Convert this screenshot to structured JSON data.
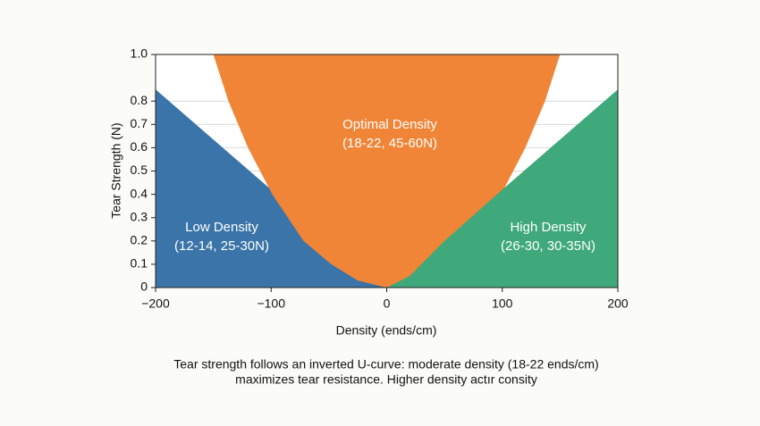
{
  "chart_data": {
    "type": "area",
    "xlabel": "Density (ends/cm)",
    "ylabel": "Tear Strength (N)",
    "xlim": [
      -200,
      200
    ],
    "ylim": [
      0,
      1.0
    ],
    "xticks": [
      {
        "value": -200,
        "label": "−200"
      },
      {
        "value": -100,
        "label": "−100"
      },
      0,
      100,
      200
    ],
    "yticks": [
      0,
      0.1,
      0.2,
      0.3,
      0.4,
      0.5,
      0.6,
      0.7,
      0.8,
      {
        "value": 1.0,
        "label": "1.0"
      }
    ],
    "grid": true,
    "series": [
      {
        "name": "Low Density",
        "note": "(12-14, 25-30N)",
        "color": "#3a74a8",
        "fill_to": "bottom",
        "x": [
          -200,
          -100,
          -50,
          -20,
          0
        ],
        "values": [
          0.85,
          0.42,
          0.2,
          0.05,
          0
        ]
      },
      {
        "name": "Optimal Density",
        "note": "(18-22, 45-60N)",
        "color": "#f08537",
        "fill_to": "top",
        "x": [
          -150,
          -137,
          -120,
          -99,
          -72,
          -48,
          -25,
          0,
          25,
          48,
          72,
          99,
          120,
          137,
          150
        ],
        "values": [
          1.0,
          0.8,
          0.6,
          0.4,
          0.2,
          0.1,
          0.03,
          0,
          0.03,
          0.1,
          0.2,
          0.4,
          0.6,
          0.8,
          1.0
        ]
      },
      {
        "name": "High Density",
        "note": "(26-30, 30-35N)",
        "color": "#3fa97b",
        "fill_to": "bottom",
        "x": [
          0,
          20,
          50,
          100,
          200
        ],
        "values": [
          0,
          0.05,
          0.2,
          0.42,
          0.85
        ]
      }
    ],
    "caption": [
      "Tear strength follows an inverted U-curve: moderate density (18-22 ends/cm)",
      "maximizes tear resistance. Higher density actır consity"
    ]
  }
}
